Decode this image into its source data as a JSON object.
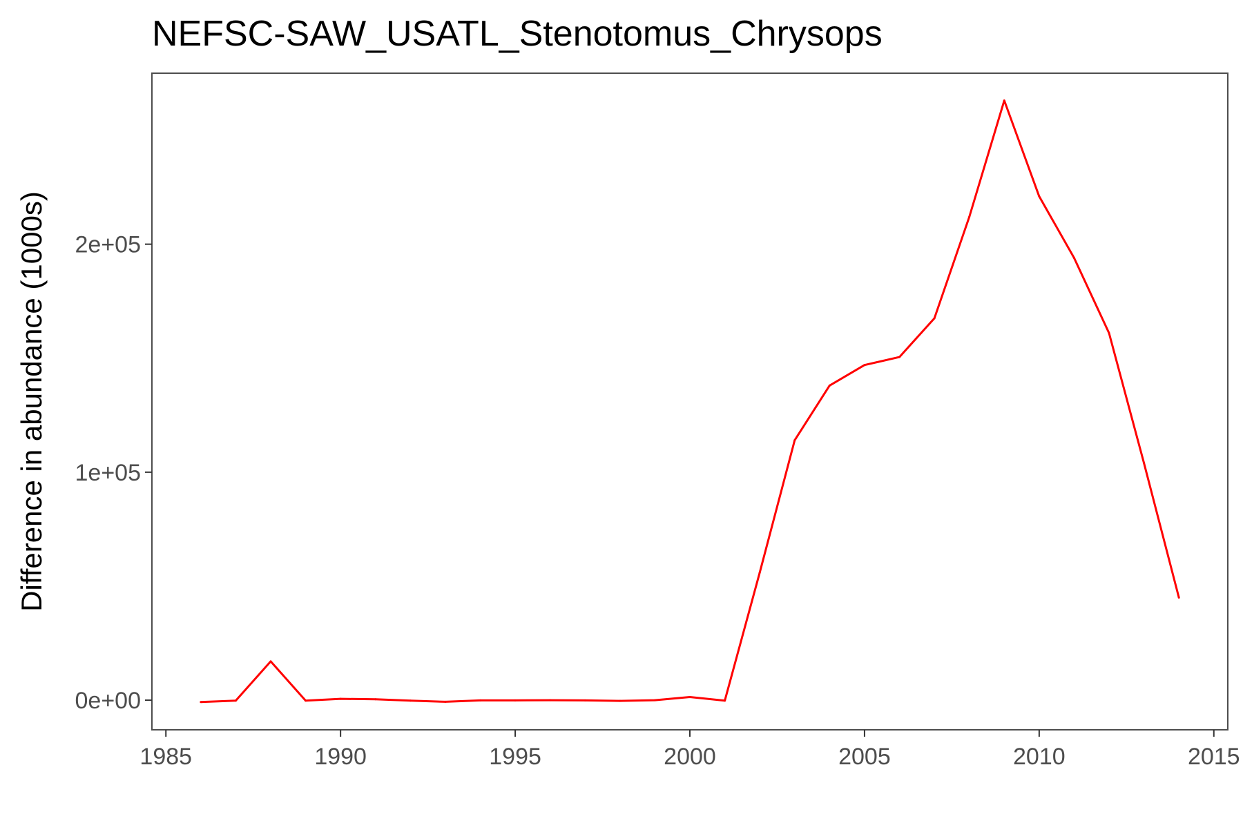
{
  "chart_data": {
    "type": "line",
    "title": "NEFSC-SAW_USATL_Stenotomus_Chrysops",
    "xlabel": "",
    "ylabel": "Difference in abundance (1000s)",
    "xlim": [
      1984.6,
      2015.4
    ],
    "ylim": [
      -13000,
      275000
    ],
    "x_ticks": [
      1985,
      1990,
      1995,
      2000,
      2005,
      2010,
      2015
    ],
    "x_tick_labels": [
      "1985",
      "1990",
      "1995",
      "2000",
      "2005",
      "2010",
      "2015"
    ],
    "y_ticks": [
      0,
      100000,
      200000
    ],
    "y_tick_labels": [
      "0e+00",
      "1e+05",
      "2e+05"
    ],
    "grid": false,
    "series": [
      {
        "color": "#ff0000",
        "x": [
          1986,
          1987,
          1988,
          1989,
          1990,
          1991,
          1992,
          1993,
          1994,
          1995,
          1996,
          1997,
          1998,
          1999,
          2000,
          2001,
          2002,
          2003,
          2004,
          2005,
          2006,
          2007,
          2008,
          2009,
          2010,
          2011,
          2012,
          2013,
          2014
        ],
        "y": [
          -800,
          -200,
          17000,
          -200,
          600,
          400,
          -200,
          -700,
          -100,
          -100,
          0,
          -100,
          -300,
          0,
          1400,
          -200,
          56000,
          114000,
          138000,
          147000,
          150500,
          167500,
          212000,
          263000,
          221000,
          194000,
          161000,
          104000,
          45000
        ]
      }
    ]
  }
}
